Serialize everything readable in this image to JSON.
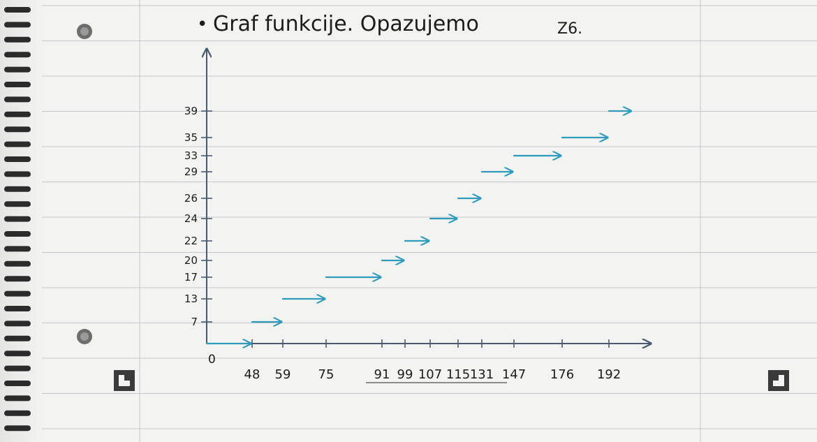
{
  "heading": {
    "bullet": "•",
    "text": "Graf funkcije. Opazujemo",
    "note": "Z6."
  },
  "colors": {
    "ink": "#1c1c1c",
    "step": "#2f9bbf",
    "axis": "#4a5870",
    "rule": "#c3c7ca"
  },
  "chart_data": {
    "type": "step",
    "title": "",
    "xlabel": "",
    "ylabel": "",
    "origin_label": "0",
    "x_ticks": [
      48,
      59,
      75,
      91,
      99,
      107,
      115,
      131,
      147,
      176,
      192
    ],
    "y_ticks": [
      7,
      13,
      17,
      20,
      22,
      24,
      26,
      29,
      33,
      35,
      39
    ],
    "series": [
      {
        "steps": [
          {
            "x0": 0,
            "x1": 48,
            "y": 0
          },
          {
            "x0": 48,
            "x1": 59,
            "y": 7
          },
          {
            "x0": 59,
            "x1": 75,
            "y": 13
          },
          {
            "x0": 75,
            "x1": 91,
            "y": 17
          },
          {
            "x0": 91,
            "x1": 99,
            "y": 20
          },
          {
            "x0": 99,
            "x1": 107,
            "y": 22
          },
          {
            "x0": 107,
            "x1": 115,
            "y": 24
          },
          {
            "x0": 115,
            "x1": 131,
            "y": 26
          },
          {
            "x0": 131,
            "x1": 147,
            "y": 29
          },
          {
            "x0": 147,
            "x1": 176,
            "y": 33
          },
          {
            "x0": 176,
            "x1": 192,
            "y": 35
          },
          {
            "x0": 192,
            "x1": 200,
            "y": 39
          }
        ]
      }
    ]
  }
}
